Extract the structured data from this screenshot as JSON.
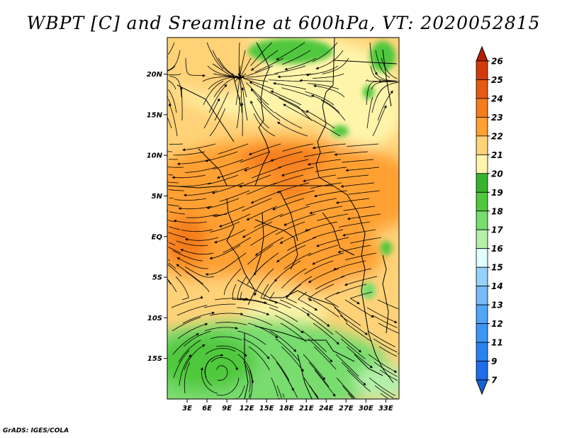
{
  "title": "WBPT [C] and Sreamline at 600hPa, VT: 2020052815",
  "footer": "GrADS: IGES/COLA",
  "map": {
    "lat_labels": [
      "20N",
      "15N",
      "10N",
      "5N",
      "EQ",
      "5S",
      "10S",
      "15S"
    ],
    "lat_values": [
      20,
      15,
      10,
      5,
      0,
      -5,
      -10,
      -15
    ],
    "lon_labels": [
      "3E",
      "6E",
      "9E",
      "12E",
      "15E",
      "18E",
      "21E",
      "24E",
      "27E",
      "30E",
      "33E"
    ],
    "lon_values": [
      3,
      6,
      9,
      12,
      15,
      18,
      21,
      24,
      27,
      30,
      33
    ],
    "lon_range": [
      0,
      35
    ],
    "lat_range": [
      -20,
      24.5
    ]
  },
  "colorbar": {
    "labels": [
      "7",
      "9",
      "11",
      "12",
      "13",
      "14",
      "15",
      "16",
      "17",
      "18",
      "19",
      "20",
      "21",
      "22",
      "23",
      "24",
      "25",
      "26"
    ],
    "colors": [
      "#1464d2",
      "#1e6eeb",
      "#2882f0",
      "#3c96f5",
      "#50a5f5",
      "#78b9fa",
      "#96d2fa",
      "#e1ffff",
      "#b4f0aa",
      "#78dc6e",
      "#50c83c",
      "#37b42d",
      "#fff5aa",
      "#ffd278",
      "#ffa032",
      "#f57d1e",
      "#e65a14",
      "#d23c0a",
      "#b41e00"
    ]
  }
}
